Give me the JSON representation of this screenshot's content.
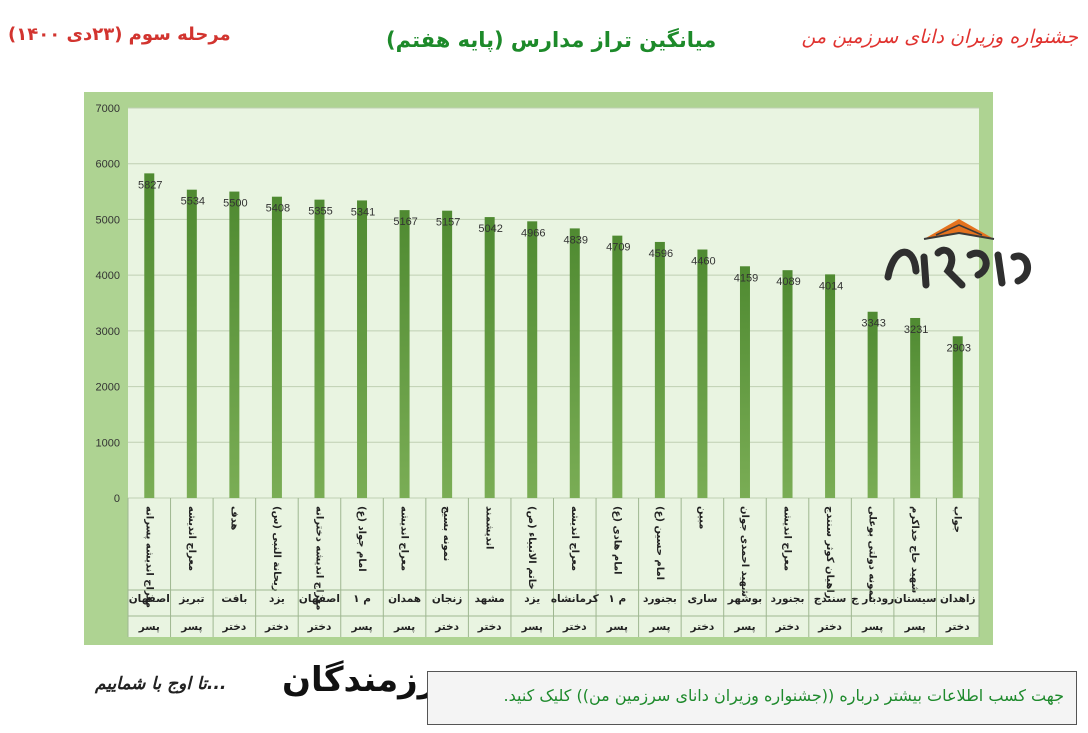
{
  "header": {
    "right_title": "جشنواره وزیران دانای سرزمین من",
    "center_title": "میانگین تراز مدارس (پایه هفتم)",
    "left_title": "مرحله سوم (۲۳دی ۱۴۰۰)"
  },
  "brand": {
    "logo_text": "وزیران دانا",
    "slogan": "تا اوج با شماییم...",
    "brand2_text": "رزمندگان"
  },
  "info_box": {
    "text": "جهت کسب اطلاعات بیشتر درباره ((جشنواره وزیران دانای سرزمین من)) کلیک کنید."
  },
  "chart_data": {
    "type": "bar",
    "ylim": [
      0,
      7000
    ],
    "yticks": [
      0,
      1000,
      2000,
      3000,
      4000,
      5000,
      6000,
      7000
    ],
    "grid": true,
    "colors": {
      "frame": "#aed392",
      "plot_bg": "#e9f4e1",
      "bar_top": "#4f8a31",
      "bar_bottom": "#7aad55",
      "grid": "#bfcfb2"
    },
    "categories": [
      {
        "school": "معراج اندیشه پسرانه",
        "city": "اصفهان",
        "gender": "پسر"
      },
      {
        "school": "معراج اندیشه",
        "city": "تبریز",
        "gender": "پسر"
      },
      {
        "school": "هدف",
        "city": "بافت",
        "gender": "دختر"
      },
      {
        "school": "ریحانة النبی (س)",
        "city": "یزد",
        "gender": "دختر"
      },
      {
        "school": "معراج اندیشه دخترانه",
        "city": "اصفهان",
        "gender": "دختر"
      },
      {
        "school": "امام جواد (ع)",
        "city": "م ۱",
        "gender": "پسر"
      },
      {
        "school": "معراج اندیشه",
        "city": "همدان",
        "gender": "پسر"
      },
      {
        "school": "نمونه بسیج",
        "city": "زنجان",
        "gender": "دختر"
      },
      {
        "school": "اندیشمند",
        "city": "مشهد",
        "gender": "دختر"
      },
      {
        "school": "خاتم الانبیاء (ص)",
        "city": "یزد",
        "gender": "پسر"
      },
      {
        "school": "معراج اندیشه",
        "city": "کرمانشاه",
        "gender": "دختر"
      },
      {
        "school": "امام هادی (ع)",
        "city": "م ۱",
        "gender": "پسر"
      },
      {
        "school": "امام حسین (ع)",
        "city": "بجنورد",
        "gender": "پسر"
      },
      {
        "school": "مبین",
        "city": "ساری",
        "gender": "دختر"
      },
      {
        "school": "شهید احمدی جوان",
        "city": "بوشهر",
        "gender": "پسر"
      },
      {
        "school": "معراج اندیشه",
        "city": "بجنورد",
        "gender": "دختر"
      },
      {
        "school": "راهیان کوثر سنندج",
        "city": "سنندج",
        "gender": "دختر"
      },
      {
        "school": "نمونه دولتی بوعلی",
        "city": "رودبار ج",
        "gender": "پسر"
      },
      {
        "school": "شهید حاج خداکرم",
        "city": "سیستان",
        "gender": "پسر"
      },
      {
        "school": "جواب",
        "city": "زاهدان",
        "gender": "دختر"
      }
    ],
    "values": [
      5827,
      5534,
      5500,
      5408,
      5355,
      5341,
      5167,
      5157,
      5042,
      4966,
      4839,
      4709,
      4596,
      4460,
      4159,
      4089,
      4014,
      3343,
      3231,
      2903
    ]
  }
}
